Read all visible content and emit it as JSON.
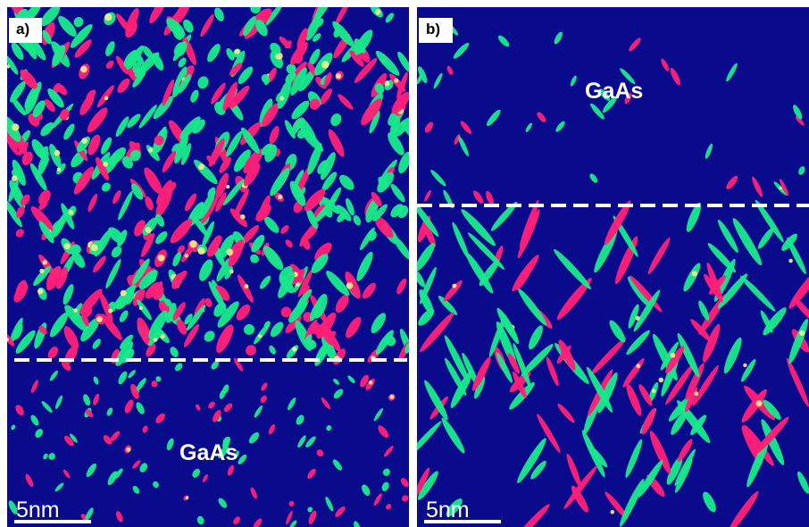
{
  "panels": [
    {
      "label": "a)",
      "material_label": "GaAs",
      "scale_bar": "5nm"
    },
    {
      "label": "b)",
      "material_label": "GaAs",
      "scale_bar": "5nm"
    }
  ],
  "colors": {
    "background": "#0a0a8c",
    "species_green": "#19e88a",
    "species_magenta": "#ff1f78",
    "overlap_yellow": "#f5f08a",
    "interface_line": "#ffffff"
  }
}
